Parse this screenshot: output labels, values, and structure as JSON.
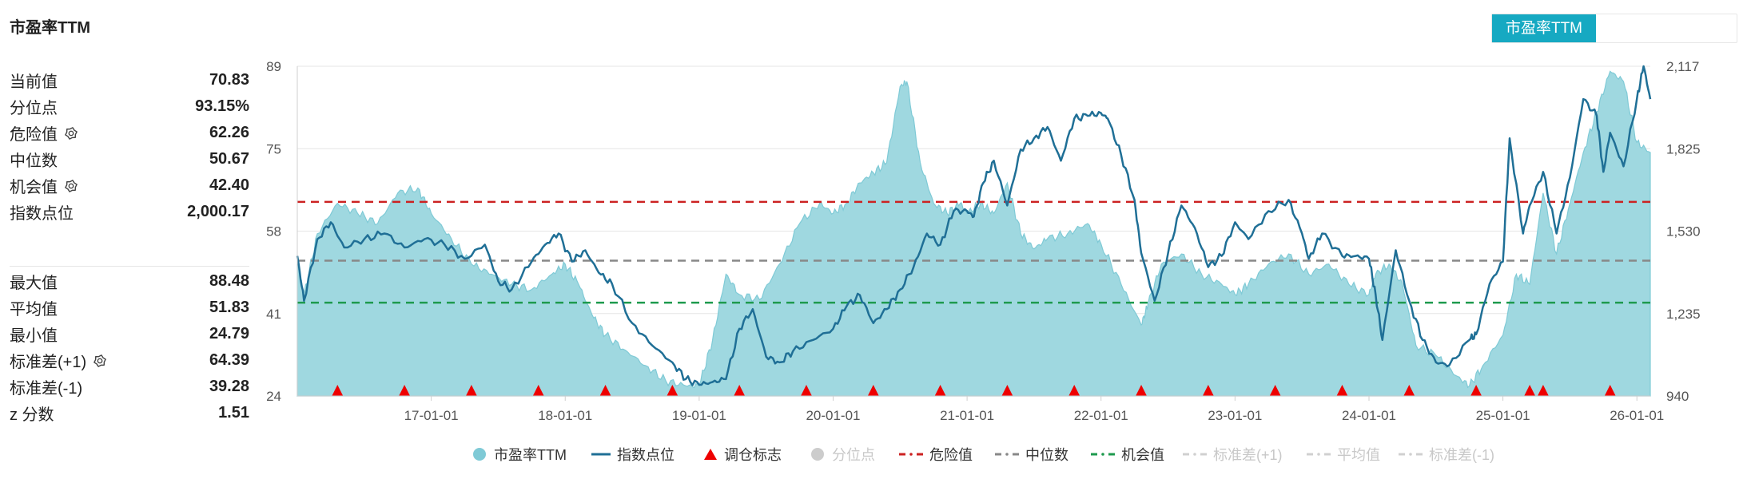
{
  "title": "市盈率TTM",
  "stats_top": [
    {
      "label": "当前值",
      "value": "70.83",
      "gear": false
    },
    {
      "label": "分位点",
      "value": "93.15%",
      "gear": false
    },
    {
      "label": "危险值",
      "value": "62.26",
      "gear": true
    },
    {
      "label": "中位数",
      "value": "50.67",
      "gear": false
    },
    {
      "label": "机会值",
      "value": "42.40",
      "gear": true
    },
    {
      "label": "指数点位",
      "value": "2,000.17",
      "gear": false
    }
  ],
  "stats_bottom": [
    {
      "label": "最大值",
      "value": "88.48",
      "gear": false
    },
    {
      "label": "平均值",
      "value": "51.83",
      "gear": false
    },
    {
      "label": "最小值",
      "value": "24.79",
      "gear": false
    },
    {
      "label": "标准差(+1)",
      "value": "64.39",
      "gear": true
    },
    {
      "label": "标准差(-1)",
      "value": "39.28",
      "gear": false
    },
    {
      "label": "z 分数",
      "value": "1.51",
      "gear": false
    }
  ],
  "tab": {
    "active_label": "市盈率TTM"
  },
  "colors": {
    "area_fill": "#9fd8e0",
    "area_line": "#7fcad6",
    "index_line": "#1f6f96",
    "danger": "#cc2222",
    "median": "#888888",
    "opportunity": "#1e9a4e",
    "marker": "#ee0000",
    "grid": "#e6e6e6",
    "tab_active": "#16a9c2"
  },
  "chart_data": {
    "type": "area+line",
    "x_ticks": [
      "17-01-01",
      "18-01-01",
      "19-01-01",
      "20-01-01",
      "21-01-01",
      "22-01-01",
      "23-01-01",
      "24-01-01",
      "25-01-01",
      "26-01-01"
    ],
    "x_range": [
      2016.0,
      2026.1
    ],
    "y_left": {
      "ticks": [
        "89",
        "75",
        "58",
        "41",
        "24"
      ],
      "range": [
        24,
        89
      ]
    },
    "y_right": {
      "ticks": [
        "2,117",
        "1,825",
        "1,530",
        "1,235",
        "940"
      ],
      "range": [
        940,
        2117
      ]
    },
    "reference_lines": {
      "danger": 62.26,
      "median": 50.67,
      "opportunity": 42.4
    },
    "series": [
      {
        "name": "市盈率TTM",
        "axis": "left",
        "x": [
          2016.0,
          2016.05,
          2016.15,
          2016.3,
          2016.45,
          2016.6,
          2016.75,
          2016.9,
          2017.0,
          2017.15,
          2017.3,
          2017.45,
          2017.6,
          2017.75,
          2017.9,
          2018.0,
          2018.1,
          2018.2,
          2018.3,
          2018.45,
          2018.6,
          2018.75,
          2018.9,
          2019.0,
          2019.1,
          2019.2,
          2019.3,
          2019.45,
          2019.6,
          2019.75,
          2019.9,
          2020.0,
          2020.1,
          2020.2,
          2020.3,
          2020.4,
          2020.5,
          2020.55,
          2020.65,
          2020.75,
          2020.85,
          2020.95,
          2021.0,
          2021.1,
          2021.2,
          2021.3,
          2021.4,
          2021.5,
          2021.6,
          2021.75,
          2021.9,
          2022.0,
          2022.15,
          2022.3,
          2022.35,
          2022.45,
          2022.6,
          2022.75,
          2022.9,
          2023.0,
          2023.1,
          2023.25,
          2023.4,
          2023.55,
          2023.7,
          2023.85,
          2024.0,
          2024.05,
          2024.15,
          2024.25,
          2024.35,
          2024.5,
          2024.65,
          2024.75,
          2024.85,
          2025.0,
          2025.1,
          2025.2,
          2025.3,
          2025.4,
          2025.5,
          2025.6,
          2025.7,
          2025.8,
          2025.9,
          2026.0,
          2026.1
        ],
        "values": [
          50,
          44,
          56,
          62,
          60,
          58,
          64,
          65,
          60,
          55,
          50,
          48,
          46,
          45,
          48,
          50,
          46,
          40,
          36,
          33,
          30,
          27,
          26,
          26,
          35,
          48,
          44,
          43,
          50,
          58,
          62,
          60,
          62,
          66,
          68,
          70,
          85,
          86,
          70,
          62,
          60,
          62,
          60,
          62,
          60,
          66,
          56,
          53,
          55,
          56,
          58,
          54,
          46,
          38,
          42,
          50,
          52,
          48,
          46,
          44,
          46,
          50,
          52,
          48,
          50,
          46,
          44,
          48,
          50,
          46,
          34,
          32,
          28,
          26,
          30,
          36,
          48,
          46,
          64,
          52,
          62,
          72,
          80,
          88,
          86,
          74,
          72
        ]
      },
      {
        "name": "指数点位",
        "axis": "right",
        "x": [
          2016.0,
          2016.05,
          2016.15,
          2016.25,
          2016.35,
          2016.5,
          2016.65,
          2016.8,
          2016.95,
          2017.1,
          2017.25,
          2017.4,
          2017.5,
          2017.6,
          2017.75,
          2017.85,
          2017.95,
          2018.05,
          2018.15,
          2018.25,
          2018.35,
          2018.5,
          2018.65,
          2018.8,
          2018.9,
          2019.0,
          2019.1,
          2019.2,
          2019.3,
          2019.4,
          2019.5,
          2019.6,
          2019.7,
          2019.85,
          2020.0,
          2020.1,
          2020.2,
          2020.3,
          2020.4,
          2020.5,
          2020.6,
          2020.7,
          2020.8,
          2020.9,
          2021.0,
          2021.05,
          2021.12,
          2021.2,
          2021.3,
          2021.4,
          2021.5,
          2021.6,
          2021.7,
          2021.8,
          2021.9,
          2022.0,
          2022.05,
          2022.15,
          2022.25,
          2022.3,
          2022.4,
          2022.5,
          2022.6,
          2022.7,
          2022.8,
          2022.9,
          2023.0,
          2023.1,
          2023.25,
          2023.4,
          2023.5,
          2023.55,
          2023.65,
          2023.8,
          2023.9,
          2024.0,
          2024.05,
          2024.1,
          2024.2,
          2024.3,
          2024.4,
          2024.5,
          2024.6,
          2024.75,
          2024.8,
          2024.9,
          2025.0,
          2025.05,
          2025.15,
          2025.2,
          2025.3,
          2025.4,
          2025.5,
          2025.6,
          2025.7,
          2025.75,
          2025.8,
          2025.9,
          2026.0,
          2026.05,
          2026.1
        ],
        "values": [
          1440,
          1280,
          1500,
          1560,
          1470,
          1500,
          1520,
          1470,
          1500,
          1480,
          1430,
          1480,
          1350,
          1320,
          1420,
          1480,
          1520,
          1420,
          1460,
          1380,
          1340,
          1200,
          1120,
          1060,
          1000,
          980,
          990,
          1000,
          1180,
          1250,
          1080,
          1060,
          1100,
          1140,
          1180,
          1260,
          1300,
          1200,
          1250,
          1320,
          1400,
          1520,
          1480,
          1600,
          1600,
          1580,
          1700,
          1780,
          1620,
          1820,
          1860,
          1900,
          1780,
          1930,
          1940,
          1950,
          1930,
          1800,
          1640,
          1450,
          1280,
          1450,
          1620,
          1540,
          1400,
          1440,
          1560,
          1500,
          1600,
          1640,
          1520,
          1430,
          1520,
          1440,
          1440,
          1430,
          1300,
          1140,
          1460,
          1280,
          1140,
          1060,
          1050,
          1140,
          1160,
          1340,
          1420,
          1860,
          1520,
          1620,
          1740,
          1520,
          1720,
          2000,
          1940,
          1740,
          1880,
          1760,
          2000,
          2117,
          2000
        ]
      }
    ],
    "adjustment_markers_x": [
      2016.3,
      2016.8,
      2017.3,
      2017.8,
      2018.3,
      2018.8,
      2019.3,
      2019.8,
      2020.3,
      2020.8,
      2021.3,
      2021.8,
      2022.3,
      2022.8,
      2023.3,
      2023.8,
      2024.3,
      2024.8,
      2025.2,
      2025.3,
      2025.8
    ]
  },
  "legend": [
    {
      "label": "市盈率TTM",
      "type": "dot",
      "color": "#7fcad6",
      "dim": false
    },
    {
      "label": "指数点位",
      "type": "line",
      "color": "#1f6f96",
      "dim": false
    },
    {
      "label": "调仓标志",
      "type": "triangle",
      "color": "#ee0000",
      "dim": false
    },
    {
      "label": "分位点",
      "type": "dot",
      "color": "#cccccc",
      "dim": true
    },
    {
      "label": "危险值",
      "type": "dash",
      "color": "#cc2222",
      "dim": false
    },
    {
      "label": "中位数",
      "type": "dash",
      "color": "#888888",
      "dim": false
    },
    {
      "label": "机会值",
      "type": "dash",
      "color": "#1e9a4e",
      "dim": false
    },
    {
      "label": "标准差(+1)",
      "type": "dash",
      "color": "#d0d0d0",
      "dim": true
    },
    {
      "label": "平均值",
      "type": "dash",
      "color": "#d0d0d0",
      "dim": true
    },
    {
      "label": "标准差(-1)",
      "type": "dash",
      "color": "#d0d0d0",
      "dim": true
    }
  ]
}
